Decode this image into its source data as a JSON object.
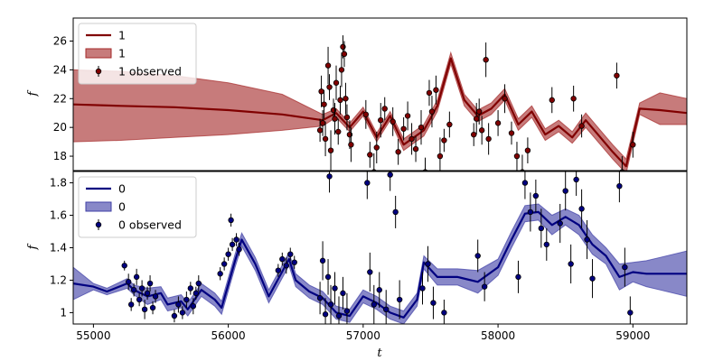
{
  "chart_data": [
    {
      "type": "line",
      "panel": "top",
      "xlabel": "",
      "ylabel": "f",
      "xlim": [
        54850,
        59400
      ],
      "ylim": [
        17.0,
        27.6
      ],
      "yticks": [
        18,
        20,
        22,
        24,
        26
      ],
      "colors": {
        "line": "#800000",
        "band": "#a52a2a",
        "points": "#800000"
      },
      "legend": {
        "placement": "upper-left",
        "entries": [
          {
            "kind": "line",
            "label": "1"
          },
          {
            "kind": "band",
            "label": "1"
          },
          {
            "kind": "errorbar",
            "label": "1 observed"
          }
        ]
      },
      "model": {
        "x": [
          54850,
          55200,
          55600,
          56000,
          56400,
          56700,
          56800,
          56900,
          57000,
          57100,
          57200,
          57300,
          57450,
          57550,
          57650,
          57750,
          57850,
          57950,
          58050,
          58150,
          58250,
          58350,
          58450,
          58550,
          58650,
          58750,
          58850,
          58950,
          59050,
          59200,
          59400
        ],
        "mean": [
          21.6,
          21.5,
          21.4,
          21.2,
          20.9,
          20.5,
          21.0,
          20.0,
          21.1,
          19.3,
          20.8,
          18.8,
          19.8,
          21.5,
          24.8,
          21.9,
          20.8,
          21.3,
          22.3,
          20.2,
          21.1,
          19.5,
          20.1,
          19.3,
          20.5,
          19.4,
          18.3,
          17.3,
          21.3,
          21.2,
          21.0
        ],
        "upper": [
          24.0,
          23.9,
          23.6,
          23.1,
          22.3,
          20.9,
          21.3,
          20.3,
          21.4,
          19.6,
          21.1,
          19.2,
          20.2,
          21.9,
          25.2,
          22.3,
          21.2,
          21.7,
          22.7,
          20.6,
          21.5,
          19.9,
          20.5,
          19.7,
          21.0,
          19.9,
          18.8,
          17.8,
          21.7,
          22.4,
          22.0
        ],
        "lower": [
          19.0,
          19.1,
          19.3,
          19.5,
          19.8,
          20.1,
          20.7,
          19.7,
          20.8,
          19.0,
          20.5,
          18.4,
          19.4,
          21.1,
          24.4,
          21.5,
          20.4,
          20.9,
          21.9,
          19.8,
          20.7,
          19.1,
          19.7,
          18.9,
          20.0,
          18.9,
          17.8,
          16.8,
          20.9,
          20.2,
          20.2
        ]
      },
      "observed": [
        {
          "x": 56680,
          "y": 19.8,
          "err": 0.8
        },
        {
          "x": 56690,
          "y": 22.5,
          "err": 1.1
        },
        {
          "x": 56700,
          "y": 20.3,
          "err": 0.9
        },
        {
          "x": 56710,
          "y": 21.6,
          "err": 1.0
        },
        {
          "x": 56720,
          "y": 19.2,
          "err": 1.2
        },
        {
          "x": 56740,
          "y": 24.3,
          "err": 1.3
        },
        {
          "x": 56750,
          "y": 22.8,
          "err": 0.9
        },
        {
          "x": 56760,
          "y": 18.4,
          "err": 1.4
        },
        {
          "x": 56780,
          "y": 21.2,
          "err": 0.8
        },
        {
          "x": 56790,
          "y": 20.6,
          "err": 1.1
        },
        {
          "x": 56800,
          "y": 23.1,
          "err": 1.2
        },
        {
          "x": 56815,
          "y": 19.7,
          "err": 0.9
        },
        {
          "x": 56830,
          "y": 21.9,
          "err": 1.0
        },
        {
          "x": 56840,
          "y": 24.0,
          "err": 1.2
        },
        {
          "x": 56850,
          "y": 25.6,
          "err": 0.8
        },
        {
          "x": 56860,
          "y": 25.1,
          "err": 0.9
        },
        {
          "x": 56870,
          "y": 22.0,
          "err": 1.1
        },
        {
          "x": 56880,
          "y": 20.7,
          "err": 0.9
        },
        {
          "x": 56900,
          "y": 19.5,
          "err": 1.0
        },
        {
          "x": 56910,
          "y": 18.8,
          "err": 1.2
        },
        {
          "x": 57020,
          "y": 20.9,
          "err": 1.0
        },
        {
          "x": 57050,
          "y": 18.1,
          "err": 0.9
        },
        {
          "x": 57080,
          "y": 16.9,
          "err": 1.3
        },
        {
          "x": 57100,
          "y": 18.6,
          "err": 1.1
        },
        {
          "x": 57130,
          "y": 20.5,
          "err": 1.2
        },
        {
          "x": 57160,
          "y": 21.3,
          "err": 0.8
        },
        {
          "x": 57220,
          "y": 20.4,
          "err": 1.0
        },
        {
          "x": 57260,
          "y": 18.3,
          "err": 0.9
        },
        {
          "x": 57300,
          "y": 19.9,
          "err": 0.8
        },
        {
          "x": 57330,
          "y": 20.8,
          "err": 1.0
        },
        {
          "x": 57360,
          "y": 19.2,
          "err": 1.1
        },
        {
          "x": 57390,
          "y": 18.5,
          "err": 0.9
        },
        {
          "x": 57430,
          "y": 20.0,
          "err": 1.2
        },
        {
          "x": 57460,
          "y": 16.9,
          "err": 1.0
        },
        {
          "x": 57490,
          "y": 22.4,
          "err": 0.9
        },
        {
          "x": 57510,
          "y": 21.1,
          "err": 1.1
        },
        {
          "x": 57540,
          "y": 22.6,
          "err": 1.0
        },
        {
          "x": 57570,
          "y": 18.0,
          "err": 1.3
        },
        {
          "x": 57600,
          "y": 19.1,
          "err": 0.8
        },
        {
          "x": 57640,
          "y": 20.2,
          "err": 0.9
        },
        {
          "x": 57820,
          "y": 19.5,
          "err": 0.8
        },
        {
          "x": 57840,
          "y": 20.6,
          "err": 1.1
        },
        {
          "x": 57860,
          "y": 21.1,
          "err": 0.9
        },
        {
          "x": 57880,
          "y": 19.8,
          "err": 1.0
        },
        {
          "x": 57910,
          "y": 24.7,
          "err": 1.2
        },
        {
          "x": 57930,
          "y": 19.2,
          "err": 1.1
        },
        {
          "x": 58000,
          "y": 20.3,
          "err": 0.9
        },
        {
          "x": 58050,
          "y": 22.0,
          "err": 1.0
        },
        {
          "x": 58100,
          "y": 19.6,
          "err": 0.8
        },
        {
          "x": 58140,
          "y": 18.0,
          "err": 1.0
        },
        {
          "x": 58180,
          "y": 16.9,
          "err": 1.2
        },
        {
          "x": 58220,
          "y": 18.4,
          "err": 0.9
        },
        {
          "x": 58400,
          "y": 21.9,
          "err": 0.9
        },
        {
          "x": 58560,
          "y": 22.0,
          "err": 0.9
        },
        {
          "x": 58620,
          "y": 20.1,
          "err": 0.8
        },
        {
          "x": 58880,
          "y": 23.6,
          "err": 0.9
        },
        {
          "x": 58920,
          "y": 16.9,
          "err": 1.1
        },
        {
          "x": 59000,
          "y": 18.8,
          "err": 0.9
        }
      ]
    },
    {
      "type": "line",
      "panel": "bottom",
      "xlabel": "t",
      "ylabel": "f",
      "xlim": [
        54850,
        59400
      ],
      "ylim": [
        0.93,
        1.87
      ],
      "yticks": [
        1.0,
        1.2,
        1.4,
        1.6,
        1.8
      ],
      "xticks": [
        55000,
        56000,
        57000,
        58000,
        59000
      ],
      "colors": {
        "line": "#000080",
        "band": "#3f3fa6",
        "points": "#000080"
      },
      "legend": {
        "placement": "upper-left",
        "entries": [
          {
            "kind": "line",
            "label": "0"
          },
          {
            "kind": "band",
            "label": "0"
          },
          {
            "kind": "errorbar",
            "label": "0 observed"
          }
        ]
      },
      "model": {
        "x": [
          54850,
          55000,
          55100,
          55250,
          55300,
          55400,
          55500,
          55550,
          55650,
          55700,
          55800,
          55900,
          55950,
          56050,
          56100,
          56200,
          56300,
          56450,
          56500,
          56600,
          56700,
          56800,
          56900,
          57000,
          57100,
          57200,
          57300,
          57400,
          57450,
          57550,
          57700,
          57850,
          58000,
          58100,
          58200,
          58300,
          58400,
          58500,
          58600,
          58700,
          58800,
          58900,
          59000,
          59100,
          59200,
          59400
        ],
        "mean": [
          1.18,
          1.16,
          1.13,
          1.18,
          1.14,
          1.1,
          1.12,
          1.05,
          1.07,
          1.02,
          1.14,
          1.08,
          1.03,
          1.32,
          1.45,
          1.3,
          1.1,
          1.33,
          1.2,
          1.13,
          1.09,
          1.0,
          0.98,
          1.1,
          1.06,
          1.0,
          0.97,
          1.08,
          1.31,
          1.22,
          1.22,
          1.19,
          1.28,
          1.45,
          1.61,
          1.62,
          1.54,
          1.59,
          1.54,
          1.42,
          1.35,
          1.22,
          1.25,
          1.24,
          1.24,
          1.24
        ],
        "upper": [
          1.28,
          1.18,
          1.15,
          1.21,
          1.17,
          1.15,
          1.16,
          1.09,
          1.11,
          1.06,
          1.18,
          1.12,
          1.07,
          1.36,
          1.49,
          1.34,
          1.14,
          1.37,
          1.24,
          1.17,
          1.13,
          1.04,
          1.02,
          1.14,
          1.1,
          1.04,
          1.01,
          1.12,
          1.35,
          1.27,
          1.27,
          1.26,
          1.33,
          1.5,
          1.66,
          1.67,
          1.6,
          1.64,
          1.6,
          1.48,
          1.4,
          1.3,
          1.31,
          1.32,
          1.34,
          1.38
        ],
        "lower": [
          1.08,
          1.14,
          1.11,
          1.15,
          1.11,
          1.05,
          1.08,
          1.01,
          1.03,
          0.98,
          1.1,
          1.04,
          0.99,
          1.28,
          1.41,
          1.26,
          1.06,
          1.29,
          1.16,
          1.09,
          1.05,
          0.96,
          0.94,
          1.06,
          1.02,
          0.96,
          0.93,
          1.04,
          1.27,
          1.17,
          1.17,
          1.12,
          1.23,
          1.4,
          1.56,
          1.57,
          1.48,
          1.54,
          1.48,
          1.36,
          1.3,
          1.14,
          1.19,
          1.16,
          1.14,
          1.1
        ]
      },
      "observed": [
        {
          "x": 55230,
          "y": 1.29,
          "err": 0.03
        },
        {
          "x": 55260,
          "y": 1.19,
          "err": 0.05
        },
        {
          "x": 55280,
          "y": 1.05,
          "err": 0.04
        },
        {
          "x": 55300,
          "y": 1.14,
          "err": 0.04
        },
        {
          "x": 55320,
          "y": 1.22,
          "err": 0.05
        },
        {
          "x": 55340,
          "y": 1.08,
          "err": 0.04
        },
        {
          "x": 55360,
          "y": 1.15,
          "err": 0.05
        },
        {
          "x": 55380,
          "y": 1.02,
          "err": 0.06
        },
        {
          "x": 55400,
          "y": 1.12,
          "err": 0.04
        },
        {
          "x": 55420,
          "y": 1.18,
          "err": 0.05
        },
        {
          "x": 55440,
          "y": 1.03,
          "err": 0.04
        },
        {
          "x": 55460,
          "y": 1.1,
          "err": 0.04
        },
        {
          "x": 55600,
          "y": 0.98,
          "err": 0.04
        },
        {
          "x": 55630,
          "y": 1.05,
          "err": 0.05
        },
        {
          "x": 55660,
          "y": 1.0,
          "err": 0.04
        },
        {
          "x": 55690,
          "y": 1.08,
          "err": 0.05
        },
        {
          "x": 55720,
          "y": 1.15,
          "err": 0.04
        },
        {
          "x": 55740,
          "y": 1.04,
          "err": 0.05
        },
        {
          "x": 55760,
          "y": 1.12,
          "err": 0.04
        },
        {
          "x": 55780,
          "y": 1.18,
          "err": 0.05
        },
        {
          "x": 55940,
          "y": 1.24,
          "err": 0.04
        },
        {
          "x": 55970,
          "y": 1.3,
          "err": 0.04
        },
        {
          "x": 56000,
          "y": 1.36,
          "err": 0.04
        },
        {
          "x": 56030,
          "y": 1.42,
          "err": 0.04
        },
        {
          "x": 56060,
          "y": 1.45,
          "err": 0.04
        },
        {
          "x": 56080,
          "y": 1.39,
          "err": 0.04
        },
        {
          "x": 56020,
          "y": 1.57,
          "err": 0.04
        },
        {
          "x": 56370,
          "y": 1.26,
          "err": 0.04
        },
        {
          "x": 56400,
          "y": 1.33,
          "err": 0.04
        },
        {
          "x": 56430,
          "y": 1.29,
          "err": 0.05
        },
        {
          "x": 56460,
          "y": 1.36,
          "err": 0.04
        },
        {
          "x": 56490,
          "y": 1.31,
          "err": 0.04
        },
        {
          "x": 56680,
          "y": 1.09,
          "err": 0.1
        },
        {
          "x": 56700,
          "y": 1.32,
          "err": 0.12
        },
        {
          "x": 56720,
          "y": 0.99,
          "err": 0.1
        },
        {
          "x": 56740,
          "y": 1.22,
          "err": 0.11
        },
        {
          "x": 56750,
          "y": 1.84,
          "err": 0.1
        },
        {
          "x": 56760,
          "y": 1.05,
          "err": 0.12
        },
        {
          "x": 56790,
          "y": 1.15,
          "err": 0.1
        },
        {
          "x": 56820,
          "y": 0.98,
          "err": 0.12
        },
        {
          "x": 56850,
          "y": 1.12,
          "err": 0.1
        },
        {
          "x": 56880,
          "y": 1.01,
          "err": 0.11
        },
        {
          "x": 57030,
          "y": 1.8,
          "err": 0.1
        },
        {
          "x": 57050,
          "y": 1.25,
          "err": 0.12
        },
        {
          "x": 57080,
          "y": 1.05,
          "err": 0.12
        },
        {
          "x": 57120,
          "y": 1.14,
          "err": 0.11
        },
        {
          "x": 57170,
          "y": 1.02,
          "err": 0.12
        },
        {
          "x": 57200,
          "y": 1.85,
          "err": 0.1
        },
        {
          "x": 57240,
          "y": 1.62,
          "err": 0.1
        },
        {
          "x": 57270,
          "y": 1.08,
          "err": 0.12
        },
        {
          "x": 57440,
          "y": 1.15,
          "err": 0.1
        },
        {
          "x": 57480,
          "y": 1.3,
          "err": 0.11
        },
        {
          "x": 57520,
          "y": 1.06,
          "err": 0.1
        },
        {
          "x": 57600,
          "y": 1.0,
          "err": 0.08
        },
        {
          "x": 57850,
          "y": 1.35,
          "err": 0.1
        },
        {
          "x": 57900,
          "y": 1.16,
          "err": 0.09
        },
        {
          "x": 58150,
          "y": 1.22,
          "err": 0.1
        },
        {
          "x": 58200,
          "y": 1.8,
          "err": 0.1
        },
        {
          "x": 58240,
          "y": 1.62,
          "err": 0.12
        },
        {
          "x": 58280,
          "y": 1.72,
          "err": 0.1
        },
        {
          "x": 58320,
          "y": 1.52,
          "err": 0.12
        },
        {
          "x": 58360,
          "y": 1.42,
          "err": 0.1
        },
        {
          "x": 58460,
          "y": 1.55,
          "err": 0.12
        },
        {
          "x": 58500,
          "y": 1.75,
          "err": 0.12
        },
        {
          "x": 58540,
          "y": 1.3,
          "err": 0.12
        },
        {
          "x": 58580,
          "y": 1.82,
          "err": 0.1
        },
        {
          "x": 58620,
          "y": 1.64,
          "err": 0.12
        },
        {
          "x": 58660,
          "y": 1.45,
          "err": 0.12
        },
        {
          "x": 58700,
          "y": 1.21,
          "err": 0.12
        },
        {
          "x": 58900,
          "y": 1.78,
          "err": 0.1
        },
        {
          "x": 58940,
          "y": 1.28,
          "err": 0.12
        },
        {
          "x": 58980,
          "y": 1.0,
          "err": 0.1
        }
      ]
    }
  ]
}
